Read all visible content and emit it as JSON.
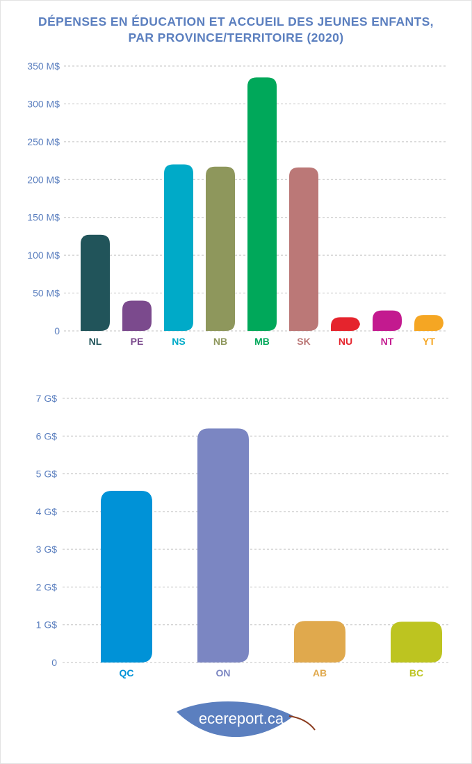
{
  "title": {
    "line1": "DÉPENSES EN ÉDUCATION ET ACCUEIL DES JEUNES ENFANTS,",
    "line2": "PAR PROVINCE/TERRITOIRE (2020)"
  },
  "logo": {
    "text": "ecereport.ca"
  },
  "colors": {
    "title": "#5b7fbf",
    "axis_text": "#5b7fbf",
    "grid": "#c2c2c2",
    "logo_leaf": "#5b7fbf",
    "logo_stem": "#8a3b1e"
  },
  "chart_data": [
    {
      "type": "bar",
      "categories": [
        "NL",
        "PE",
        "NS",
        "NB",
        "MB",
        "SK",
        "NU",
        "NT",
        "YT"
      ],
      "values": [
        127,
        40,
        220,
        217,
        335,
        216,
        18,
        27,
        21
      ],
      "colors": [
        "#21545a",
        "#7b4a8d",
        "#00aac8",
        "#8e975c",
        "#00a85a",
        "#bb7877",
        "#e5242d",
        "#c31a8f",
        "#f5a623"
      ],
      "yticks": [
        "0",
        "50 M$",
        "100 M$",
        "150 M$",
        "200 M$",
        "250 M$",
        "300 M$",
        "350 M$"
      ],
      "tick_values": [
        0,
        50,
        100,
        150,
        200,
        250,
        300,
        350
      ],
      "ylim": [
        0,
        350
      ],
      "unit": "M$",
      "grid": true
    },
    {
      "type": "bar",
      "categories": [
        "QC",
        "ON",
        "AB",
        "BC"
      ],
      "values": [
        4.55,
        6.2,
        1.1,
        1.08
      ],
      "colors": [
        "#0092d7",
        "#7b86c2",
        "#e0a94d",
        "#bdc420"
      ],
      "yticks": [
        "0",
        "1 G$",
        "2 G$",
        "3 G$",
        "4 G$",
        "5 G$",
        "6 G$",
        "7 G$"
      ],
      "tick_values": [
        0,
        1,
        2,
        3,
        4,
        5,
        6,
        7
      ],
      "ylim": [
        0,
        7
      ],
      "unit": "G$",
      "grid": true
    }
  ]
}
